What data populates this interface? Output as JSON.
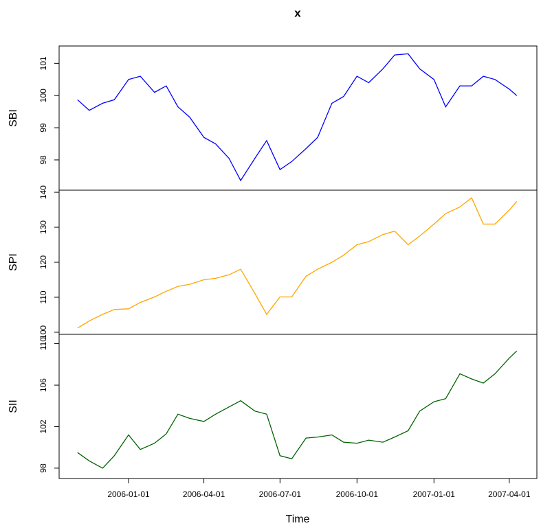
{
  "title": "x",
  "xlabel": "Time",
  "x": [
    "2005-11-01",
    "2005-11-15",
    "2005-12-01",
    "2005-12-15",
    "2006-01-01",
    "2006-01-15",
    "2006-02-01",
    "2006-02-15",
    "2006-03-01",
    "2006-03-15",
    "2006-04-01",
    "2006-04-15",
    "2006-05-01",
    "2006-05-15",
    "2006-06-01",
    "2006-06-15",
    "2006-07-01",
    "2006-07-15",
    "2006-08-01",
    "2006-08-15",
    "2006-09-01",
    "2006-09-15",
    "2006-10-01",
    "2006-10-15",
    "2006-11-01",
    "2006-11-15",
    "2006-12-01",
    "2006-12-15",
    "2007-01-01",
    "2007-01-15",
    "2007-02-01",
    "2007-02-15",
    "2007-03-01",
    "2007-03-15",
    "2007-04-01",
    "2007-04-10"
  ],
  "xlim": [
    "2005-10-10",
    "2007-05-04"
  ],
  "xticks": [
    "2006-01-01",
    "2006-04-01",
    "2006-07-01",
    "2006-10-01",
    "2007-01-01",
    "2007-04-01"
  ],
  "chart_data": [
    {
      "type": "line",
      "ylabel": "SBI",
      "ylim": [
        97.06,
        101.54
      ],
      "yticks": [
        98,
        99,
        100,
        101
      ],
      "series": [
        {
          "color": "#0000ff",
          "values": [
            99.87,
            99.54,
            99.76,
            99.87,
            100.5,
            100.6,
            100.1,
            100.3,
            99.65,
            99.33,
            98.7,
            98.5,
            98.05,
            97.36,
            98.05,
            98.6,
            97.7,
            97.95,
            98.35,
            98.7,
            99.76,
            99.97,
            100.6,
            100.4,
            100.83,
            101.26,
            101.3,
            100.83,
            100.5,
            99.65,
            100.3,
            100.3,
            100.6,
            100.5,
            100.2,
            100.0
          ]
        }
      ]
    },
    {
      "type": "line",
      "ylabel": "SPI",
      "ylim": [
        99.4,
        140.6
      ],
      "yticks": [
        100,
        110,
        120,
        130,
        140
      ],
      "series": [
        {
          "color": "#ffa500",
          "values": [
            101.2,
            103.2,
            105.1,
            106.5,
            106.7,
            108.5,
            110.1,
            111.7,
            113.1,
            113.7,
            115.0,
            115.4,
            116.4,
            118.0,
            111.1,
            105.1,
            110.1,
            110.1,
            116.0,
            118.0,
            120.0,
            122.0,
            125.0,
            125.9,
            127.9,
            128.9,
            125.0,
            127.5,
            130.9,
            133.9,
            135.8,
            138.4,
            130.9,
            130.9,
            134.9,
            137.4
          ]
        }
      ]
    },
    {
      "type": "line",
      "ylabel": "SII",
      "ylim": [
        97.0,
        110.9
      ],
      "yticks": [
        98,
        102,
        106,
        110
      ],
      "series": [
        {
          "color": "#006400",
          "values": [
            99.5,
            98.7,
            98.0,
            99.2,
            101.2,
            99.8,
            100.4,
            101.3,
            103.2,
            102.8,
            102.5,
            103.2,
            103.9,
            104.5,
            103.5,
            103.2,
            99.2,
            98.9,
            100.9,
            101.0,
            101.2,
            100.5,
            100.4,
            100.7,
            100.5,
            101.0,
            101.6,
            103.5,
            104.4,
            104.7,
            107.1,
            106.6,
            106.2,
            107.1,
            108.6,
            109.3
          ]
        }
      ]
    }
  ]
}
